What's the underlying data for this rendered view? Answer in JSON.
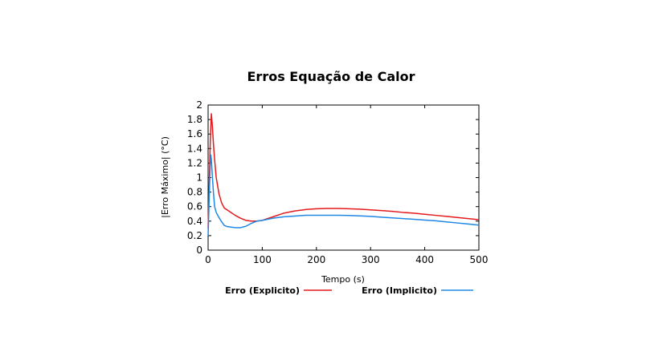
{
  "chart_data": {
    "type": "line",
    "title": "Erros Equação de Calor",
    "xlabel": "Tempo (s)",
    "ylabel": "|Erro Máximo| (°C)",
    "xlim": [
      0,
      500
    ],
    "ylim": [
      0,
      2
    ],
    "xticks": [
      0,
      100,
      200,
      300,
      400,
      500
    ],
    "yticks": [
      0,
      0.2,
      0.4,
      0.6,
      0.8,
      1,
      1.2,
      1.4,
      1.6,
      1.8,
      2
    ],
    "xtick_labels": [
      "0",
      "100",
      "200",
      "300",
      "400",
      "500"
    ],
    "ytick_labels": [
      "0",
      "0.2",
      "0.4",
      "0.6",
      "0.8",
      "1",
      "1.2",
      "1.4",
      "1.6",
      "1.8",
      "2"
    ],
    "grid": false,
    "legend_position": "bottom",
    "series": [
      {
        "name": "Erro (Explicito)",
        "color": "#e41a1c",
        "x": [
          0,
          2,
          4,
          6,
          8,
          10,
          12,
          15,
          20,
          25,
          30,
          40,
          50,
          60,
          70,
          80,
          90,
          100,
          120,
          140,
          160,
          180,
          200,
          220,
          240,
          260,
          280,
          300,
          320,
          340,
          360,
          380,
          400,
          420,
          440,
          460,
          480,
          500
        ],
        "y": [
          0.3,
          0.9,
          1.5,
          1.88,
          1.7,
          1.45,
          1.25,
          1.0,
          0.78,
          0.65,
          0.58,
          0.53,
          0.48,
          0.44,
          0.41,
          0.4,
          0.4,
          0.41,
          0.46,
          0.51,
          0.54,
          0.56,
          0.57,
          0.575,
          0.575,
          0.57,
          0.565,
          0.555,
          0.545,
          0.535,
          0.52,
          0.51,
          0.495,
          0.48,
          0.465,
          0.45,
          0.435,
          0.42
        ]
      },
      {
        "name": "Erro (Implicito)",
        "color": "#1e88e5",
        "x": [
          0,
          2,
          4,
          5,
          6,
          8,
          10,
          12,
          15,
          20,
          25,
          30,
          35,
          40,
          50,
          60,
          70,
          80,
          90,
          100,
          120,
          140,
          160,
          180,
          200,
          220,
          240,
          260,
          280,
          300,
          320,
          340,
          360,
          380,
          400,
          420,
          440,
          460,
          480,
          500
        ],
        "y": [
          0.2,
          0.7,
          1.2,
          1.31,
          1.25,
          1.0,
          0.78,
          0.6,
          0.52,
          0.45,
          0.39,
          0.34,
          0.325,
          0.32,
          0.31,
          0.31,
          0.33,
          0.37,
          0.4,
          0.41,
          0.44,
          0.46,
          0.47,
          0.48,
          0.48,
          0.48,
          0.48,
          0.478,
          0.472,
          0.465,
          0.455,
          0.445,
          0.435,
          0.425,
          0.415,
          0.405,
          0.39,
          0.375,
          0.36,
          0.345
        ]
      }
    ]
  }
}
